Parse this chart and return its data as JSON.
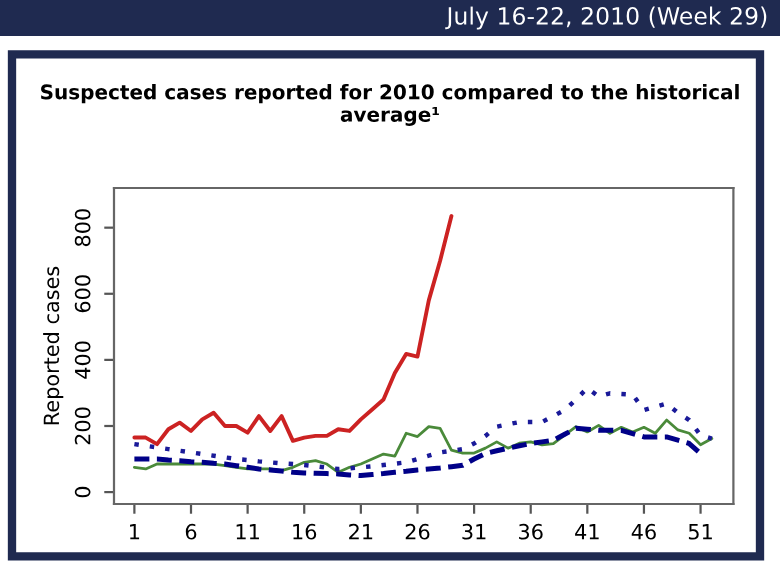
{
  "chart_data": {
    "type": "line",
    "title": "Suspected cases reported for 2010 compared to the historical average¹",
    "ylabel": "Reported cases",
    "annotations": [
      "July 16-22, 2010 (Week 29)"
    ],
    "x": [
      1,
      2,
      3,
      4,
      5,
      6,
      7,
      8,
      9,
      10,
      11,
      12,
      13,
      14,
      15,
      16,
      17,
      18,
      19,
      20,
      21,
      22,
      23,
      24,
      25,
      26,
      27,
      28,
      29,
      30,
      31,
      32,
      33,
      34,
      35,
      36,
      37,
      38,
      39,
      40,
      41,
      42,
      43,
      44,
      45,
      46,
      47,
      48,
      49,
      50,
      51,
      52
    ],
    "series": [
      {
        "color": "#4a8a3a",
        "line_style": "solid",
        "values": [
          75,
          70,
          85,
          85,
          85,
          85,
          85,
          85,
          80,
          75,
          70,
          70,
          70,
          65,
          75,
          90,
          95,
          85,
          60,
          75,
          85,
          100,
          115,
          109,
          178,
          168,
          198,
          193,
          127,
          118,
          118,
          133,
          152,
          133,
          148,
          152,
          143,
          147,
          172,
          198,
          182,
          202,
          178,
          196,
          182,
          196,
          178,
          218,
          188,
          178,
          143,
          162
        ]
      },
      {
        "color": "#1a1a99",
        "line_style": "dotted",
        "values": [
          145,
          140,
          135,
          130,
          125,
          120,
          115,
          110,
          105,
          100,
          97,
          93,
          90,
          87,
          85,
          82,
          78,
          74,
          70,
          72,
          75,
          78,
          82,
          86,
          90,
          100,
          110,
          120,
          125,
          130,
          147,
          170,
          198,
          205,
          212,
          212,
          212,
          230,
          248,
          280,
          315,
          289,
          299,
          297,
          295,
          248,
          258,
          268,
          240,
          218,
          172,
          162
        ]
      },
      {
        "color": "#000088",
        "line_style": "dashed",
        "values": [
          100,
          100,
          100,
          97,
          95,
          92,
          90,
          87,
          85,
          80,
          75,
          70,
          67,
          64,
          60,
          58,
          57,
          56,
          55,
          52,
          50,
          53,
          56,
          60,
          63,
          67,
          70,
          73,
          77,
          81,
          100,
          117,
          125,
          133,
          140,
          147,
          152,
          157,
          175,
          193,
          190,
          187,
          187,
          187,
          177,
          167,
          167,
          167,
          157,
          147,
          117,
          null
        ]
      },
      {
        "color": "#cc2222",
        "line_style": "solid",
        "values": [
          165,
          165,
          145,
          190,
          210,
          185,
          220,
          240,
          200,
          200,
          180,
          230,
          185,
          230,
          155,
          165,
          170,
          170,
          190,
          185,
          220,
          250,
          280,
          360,
          418,
          410,
          580,
          700,
          835,
          null,
          null,
          null,
          null,
          null,
          null,
          null,
          null,
          null,
          null,
          null,
          null,
          null,
          null,
          null,
          null,
          null,
          null,
          null,
          null,
          null,
          null,
          null
        ]
      }
    ],
    "xlim": [
      -0.8,
      53.9
    ],
    "ylim": [
      -36,
      920
    ],
    "xticks": [
      1,
      6,
      11,
      16,
      21,
      26,
      31,
      36,
      41,
      46,
      51
    ],
    "yticks": [
      0,
      200,
      400,
      600,
      800
    ],
    "grid": false,
    "marker": "none"
  }
}
